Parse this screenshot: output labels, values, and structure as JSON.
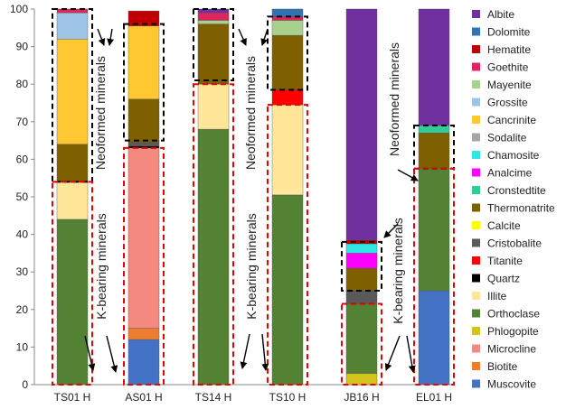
{
  "chart_data": {
    "type": "stacked-bar",
    "categories": [
      "TS01 H",
      "AS01 H",
      "TS14 H",
      "TS10 H",
      "JB16 H",
      "EL01 H"
    ],
    "ylim": [
      0,
      100
    ],
    "yticks": [
      0,
      10,
      20,
      30,
      40,
      50,
      60,
      70,
      80,
      90,
      100
    ],
    "series": [
      {
        "name": "Muscovite",
        "color": "#4472C4",
        "values": [
          0,
          12,
          0,
          0,
          0,
          25
        ]
      },
      {
        "name": "Biotite",
        "color": "#ED7D31",
        "values": [
          0,
          3,
          0,
          0,
          0,
          0
        ]
      },
      {
        "name": "Microcline",
        "color": "#F4897F",
        "values": [
          0,
          48,
          0,
          0,
          0,
          0
        ]
      },
      {
        "name": "Phlogopite",
        "color": "#D4C31A",
        "values": [
          0,
          0,
          0,
          0,
          3,
          0
        ]
      },
      {
        "name": "Orthoclase",
        "color": "#548235",
        "values": [
          44,
          0,
          68,
          50.5,
          18.5,
          32.5
        ]
      },
      {
        "name": "Illite",
        "color": "#FFE699",
        "values": [
          10,
          0,
          12,
          24,
          0,
          0
        ]
      },
      {
        "name": "Quartz",
        "color": "#000000",
        "values": [
          0,
          0.5,
          0,
          0,
          0,
          0
        ]
      },
      {
        "name": "Titanite",
        "color": "#FF0000",
        "values": [
          0,
          0,
          0,
          4,
          0,
          0
        ]
      },
      {
        "name": "Cristobalite",
        "color": "#595959",
        "values": [
          0,
          1,
          0,
          0,
          3.5,
          0
        ]
      },
      {
        "name": "Calcite",
        "color": "#FFFF00",
        "values": [
          0,
          0,
          0,
          0,
          0,
          0
        ]
      },
      {
        "name": "Thermonatrite",
        "color": "#7F6000",
        "values": [
          10,
          11.5,
          16,
          14.5,
          6,
          9.5
        ]
      },
      {
        "name": "Cronstedtite",
        "color": "#33CC99",
        "values": [
          0,
          0,
          0,
          0,
          0,
          2
        ]
      },
      {
        "name": "Analcime",
        "color": "#FF00FF",
        "values": [
          0,
          0,
          0,
          0,
          4,
          0
        ]
      },
      {
        "name": "Chamosite",
        "color": "#33E6E6",
        "values": [
          0,
          0,
          0,
          0,
          2.5,
          0
        ]
      },
      {
        "name": "Sodalite",
        "color": "#A6A6A6",
        "values": [
          0,
          0,
          0,
          0,
          0,
          0
        ]
      },
      {
        "name": "Cancrinite",
        "color": "#FFC832",
        "values": [
          28,
          19.5,
          0,
          0,
          0,
          0
        ]
      },
      {
        "name": "Grossite",
        "color": "#9DC3E6",
        "values": [
          7,
          0,
          0,
          0,
          0,
          0
        ]
      },
      {
        "name": "Mayenite",
        "color": "#A9D18E",
        "values": [
          0,
          0,
          1,
          4,
          0,
          0
        ]
      },
      {
        "name": "Goethite",
        "color": "#E0245E",
        "values": [
          1,
          0,
          2,
          1,
          0,
          0
        ]
      },
      {
        "name": "Hematite",
        "color": "#C00000",
        "values": [
          0,
          4,
          0,
          0,
          1,
          0
        ]
      },
      {
        "name": "Dolomite",
        "color": "#2E75B6",
        "values": [
          0,
          0,
          0,
          2,
          0,
          0
        ]
      },
      {
        "name": "Albite",
        "color": "#7030A0",
        "values": [
          0,
          0,
          1,
          0,
          61.5,
          31
        ]
      }
    ],
    "legend_order": [
      "Albite",
      "Dolomite",
      "Hematite",
      "Goethite",
      "Mayenite",
      "Grossite",
      "Cancrinite",
      "Sodalite",
      "Chamosite",
      "Analcime",
      "Cronstedtite",
      "Thermonatrite",
      "Calcite",
      "Cristobalite",
      "Titanite",
      "Quartz",
      "Illite",
      "Orthoclase",
      "Phlogopite",
      "Microcline",
      "Biotite",
      "Muscovite"
    ],
    "legend_position": "right",
    "annotations": [
      {
        "text": "Neoformed minerals",
        "group": "neoformed"
      },
      {
        "text": "Neoformed minerals",
        "group": "neoformed"
      },
      {
        "text": "Neoformed minerals",
        "group": "neoformed"
      },
      {
        "text": "K-bearing minerals",
        "group": "k-bearing"
      },
      {
        "text": "K-bearing minerals",
        "group": "k-bearing"
      },
      {
        "text": "K-bearing minerals",
        "group": "k-bearing"
      }
    ],
    "neoformed_boxes": [
      {
        "category": "TS01 H",
        "from": 54,
        "to": 100
      },
      {
        "category": "AS01 H",
        "from": 65,
        "to": 96
      },
      {
        "category": "TS14 H",
        "from": 81,
        "to": 100
      },
      {
        "category": "TS10 H",
        "from": 78.5,
        "to": 98
      },
      {
        "category": "JB16 H",
        "from": 25,
        "to": 38
      },
      {
        "category": "EL01 H",
        "from": 57.5,
        "to": 69
      }
    ],
    "k_bearing_boxes": [
      {
        "category": "TS01 H",
        "from": 0,
        "to": 54
      },
      {
        "category": "AS01 H",
        "from": 0,
        "to": 63
      },
      {
        "category": "TS14 H",
        "from": 0,
        "to": 80
      },
      {
        "category": "TS10 H",
        "from": 0,
        "to": 74.5
      },
      {
        "category": "JB16 H",
        "from": 0,
        "to": 21.5
      },
      {
        "category": "EL01 H",
        "from": 0,
        "to": 57.5
      }
    ]
  }
}
